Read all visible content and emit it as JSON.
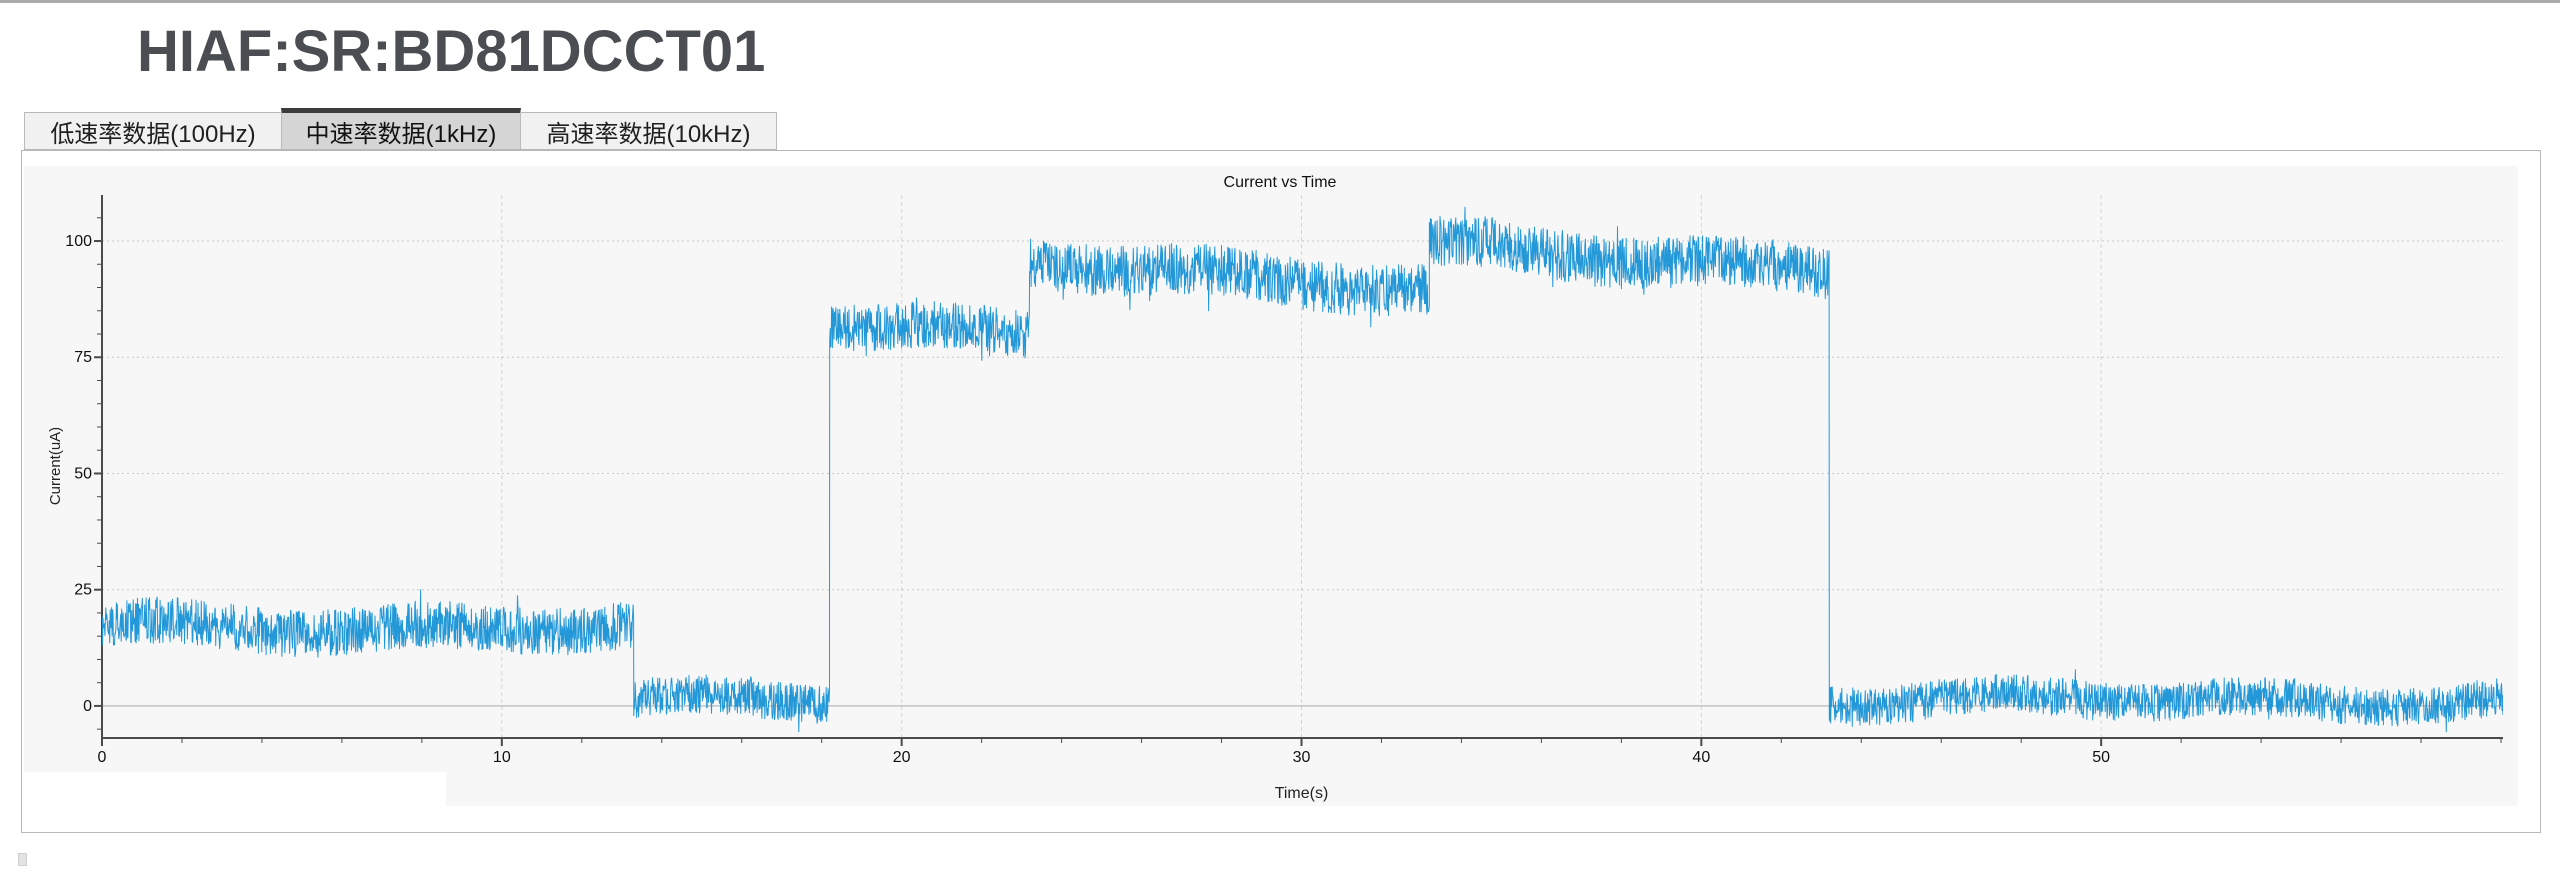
{
  "page": {
    "title": "HIAF:SR:BD81DCCT01"
  },
  "tabs": [
    {
      "id": "low",
      "label": "低速率数据(100Hz)",
      "selected": false
    },
    {
      "id": "mid",
      "label": "中速率数据(1kHz)",
      "selected": true
    },
    {
      "id": "high",
      "label": "高速率数据(10kHz)",
      "selected": false
    }
  ],
  "colors": {
    "accent_line": "#2398d8",
    "chart_background": "#f7f7f7",
    "axis": "#4a4a4a",
    "grid_dotted": "#c9c9c9",
    "grid_dashed": "#d4d4d4",
    "zero_line": "#c3c3c3",
    "title_text": "#4a4d52",
    "tab_selected_bar": "#3c3c3c"
  },
  "chart_data": {
    "type": "line",
    "title": "Current vs Time",
    "xlabel": "Time(s)",
    "ylabel": "Current(uA)",
    "xlim": [
      0,
      60.05
    ],
    "ylim": [
      -6.9,
      109.9
    ],
    "x_major_ticks": [
      0,
      10,
      20,
      30,
      40,
      50
    ],
    "x_minor_interval": 2,
    "y_major_ticks": [
      0,
      25,
      50,
      75,
      100
    ],
    "y_minor_interval": 5,
    "grid": true,
    "legend_position": "none",
    "line_color": "#2398d8",
    "sample_step_s": 0.012,
    "noise_wobble": [
      {
        "amp": 1.1,
        "freq": 0.85
      },
      {
        "amp": 0.6,
        "freq": 0.33
      }
    ],
    "segments": [
      {
        "t_start": 0.0,
        "t_end": 13.3,
        "level_start": 17.0,
        "level_end": 17.0,
        "noise": 5.5
      },
      {
        "t_start": 13.3,
        "t_end": 18.2,
        "level_start": 0.8,
        "level_end": 1.2,
        "noise": 4.5
      },
      {
        "t_start": 18.2,
        "t_end": 23.2,
        "level_start": 82.0,
        "level_end": 80.5,
        "noise": 5.5
      },
      {
        "t_start": 23.2,
        "t_end": 33.2,
        "level_start": 96.5,
        "level_end": 88.5,
        "noise": 6.0
      },
      {
        "t_start": 33.2,
        "t_end": 43.2,
        "level_start": 99.0,
        "level_end": 94.0,
        "noise": 6.0
      },
      {
        "t_start": 43.2,
        "t_end": 60.1,
        "level_start": 1.2,
        "level_end": 1.2,
        "noise": 4.5
      }
    ]
  }
}
